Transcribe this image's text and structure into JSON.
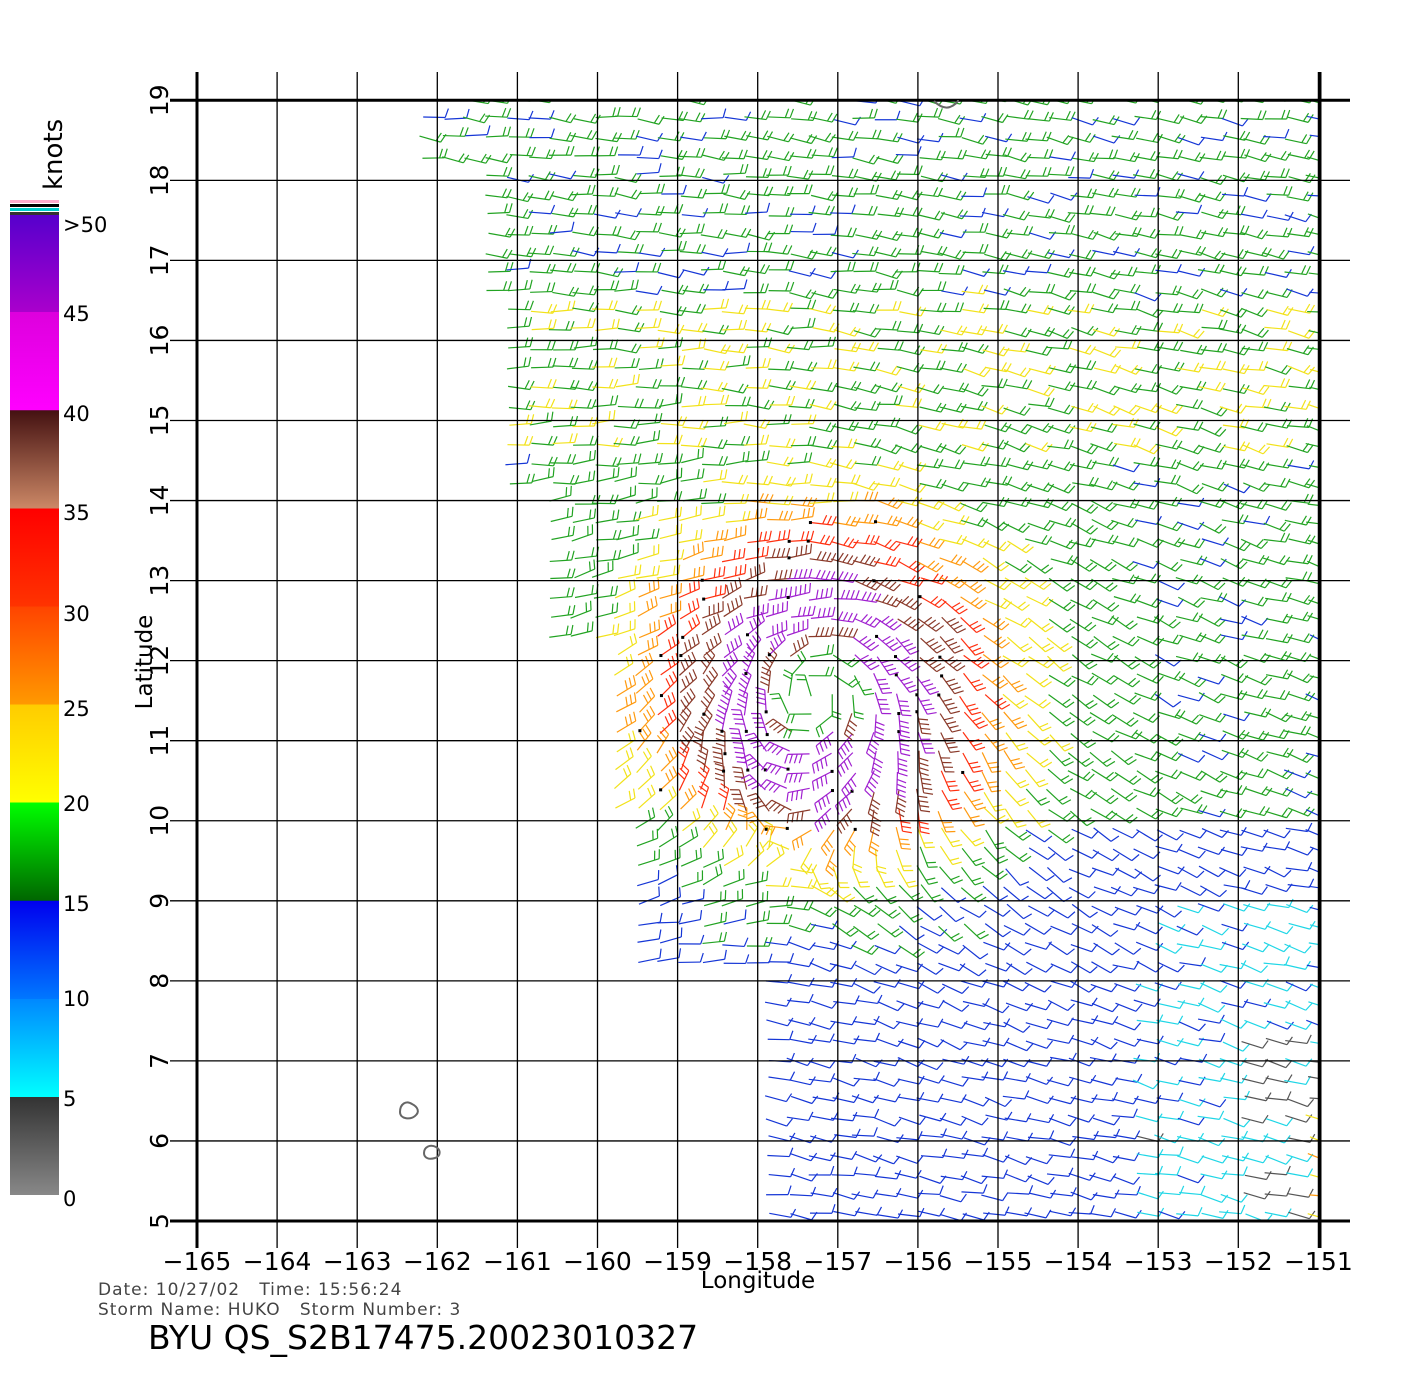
{
  "plot": {
    "xlabel": "Longitude",
    "ylabel": "Latitude",
    "x_ticks": [
      "−165",
      "−164",
      "−163",
      "−162",
      "−161",
      "−160",
      "−159",
      "−158",
      "−157",
      "−156",
      "−155",
      "−154",
      "−153",
      "−152",
      "−151"
    ],
    "y_ticks": [
      "5",
      "6",
      "7",
      "8",
      "9",
      "10",
      "11",
      "12",
      "13",
      "14",
      "15",
      "16",
      "17",
      "18",
      "19"
    ],
    "lon_range": [
      -165,
      -150.6
    ],
    "lat_range": [
      5,
      19
    ],
    "storm_center": {
      "lon": -157.3,
      "lat": 11.6
    }
  },
  "legend": {
    "unit": "knots",
    "labels": [
      ">50",
      "45",
      "40",
      "35",
      "30",
      "25",
      "20",
      "15",
      "10",
      "5",
      "0"
    ],
    "bands": [
      {
        "from": 0,
        "to": 5,
        "colors": [
          "#888888",
          "#333333"
        ]
      },
      {
        "from": 5,
        "to": 10,
        "colors": [
          "#00ffff",
          "#0088ff"
        ]
      },
      {
        "from": 10,
        "to": 15,
        "colors": [
          "#0077ff",
          "#0000ee"
        ]
      },
      {
        "from": 15,
        "to": 20,
        "colors": [
          "#006600",
          "#00ff00"
        ]
      },
      {
        "from": 20,
        "to": 25,
        "colors": [
          "#ffff00",
          "#ffcc00"
        ]
      },
      {
        "from": 25,
        "to": 30,
        "colors": [
          "#ff9900",
          "#ff4400"
        ]
      },
      {
        "from": 30,
        "to": 35,
        "colors": [
          "#ff3300",
          "#ff0000"
        ]
      },
      {
        "from": 35,
        "to": 40,
        "colors": [
          "#cc8866",
          "#441111"
        ]
      },
      {
        "from": 40,
        "to": 45,
        "colors": [
          "#ff00ff",
          "#dd00dd"
        ]
      },
      {
        "from": 45,
        "to": 50,
        "colors": [
          "#aa00cc",
          "#5500cc"
        ]
      }
    ],
    "top_stripes": [
      "#ffaacc",
      "#000000",
      "#00cccc",
      "#333333"
    ]
  },
  "footer": {
    "date_line": "Date: 10/27/02   Time: 15:56:24",
    "storm_line": "Storm Name: HUKO   Storm Number: 3",
    "title": "BYU QS_S2B17475.20023010327"
  }
}
